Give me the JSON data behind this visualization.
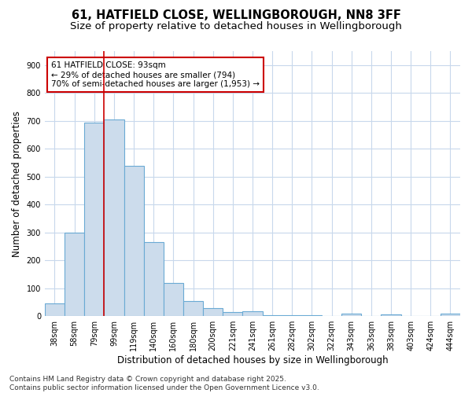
{
  "title_line1": "61, HATFIELD CLOSE, WELLINGBOROUGH, NN8 3FF",
  "title_line2": "Size of property relative to detached houses in Wellingborough",
  "xlabel": "Distribution of detached houses by size in Wellingborough",
  "ylabel": "Number of detached properties",
  "categories": [
    "38sqm",
    "58sqm",
    "79sqm",
    "99sqm",
    "119sqm",
    "140sqm",
    "160sqm",
    "180sqm",
    "200sqm",
    "221sqm",
    "241sqm",
    "261sqm",
    "282sqm",
    "302sqm",
    "322sqm",
    "343sqm",
    "363sqm",
    "383sqm",
    "403sqm",
    "424sqm",
    "444sqm"
  ],
  "values": [
    45,
    300,
    695,
    705,
    540,
    265,
    120,
    55,
    28,
    15,
    18,
    2,
    2,
    3,
    0,
    8,
    0,
    5,
    0,
    0,
    8
  ],
  "bar_color": "#ccdcec",
  "bar_edge_color": "#6aaad4",
  "bar_edge_width": 0.8,
  "vline_color": "#cc0000",
  "vline_x": 2.5,
  "ylim": [
    0,
    950
  ],
  "yticks": [
    0,
    100,
    200,
    300,
    400,
    500,
    600,
    700,
    800,
    900
  ],
  "annotation_text": "61 HATFIELD CLOSE: 93sqm\n← 29% of detached houses are smaller (794)\n70% of semi-detached houses are larger (1,953) →",
  "annotation_box_color": "#cc0000",
  "background_color": "#ffffff",
  "grid_color": "#c8d8ec",
  "title_fontsize": 10.5,
  "subtitle_fontsize": 9.5,
  "tick_fontsize": 7,
  "label_fontsize": 8.5,
  "annotation_fontsize": 7.5,
  "footer_fontsize": 6.5,
  "footer_text": "Contains HM Land Registry data © Crown copyright and database right 2025.\nContains public sector information licensed under the Open Government Licence v3.0."
}
